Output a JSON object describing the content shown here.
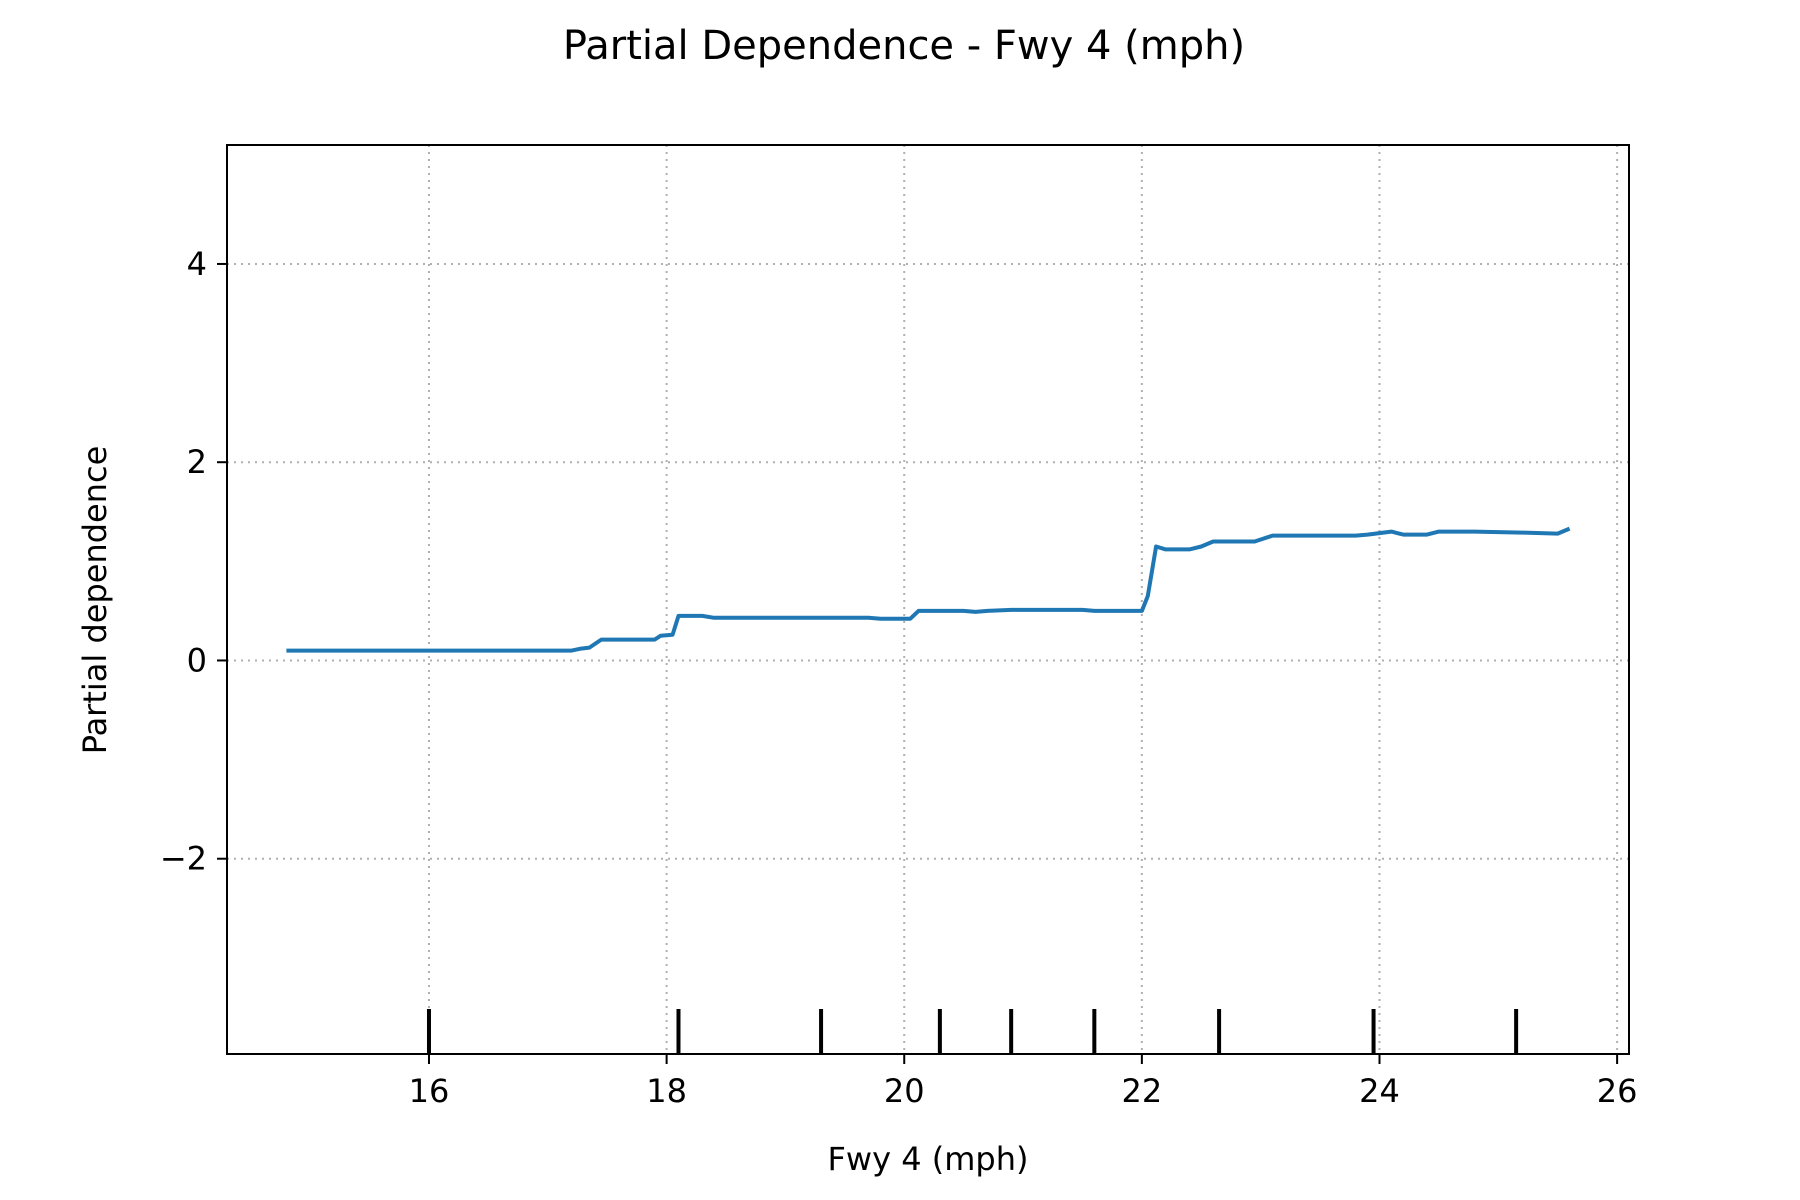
{
  "chart_data": {
    "type": "line",
    "title": "Partial Dependence - Fwy 4 (mph)",
    "xlabel": "Fwy 4 (mph)",
    "ylabel": "Partial dependence",
    "xlim": [
      14.3,
      26.1
    ],
    "ylim": [
      -3.97,
      5.2
    ],
    "xticks": [
      16,
      18,
      20,
      22,
      24,
      26
    ],
    "xtick_labels": [
      "16",
      "18",
      "20",
      "22",
      "24",
      "26"
    ],
    "yticks": [
      -2,
      0,
      2,
      4
    ],
    "ytick_labels": [
      "−2",
      "0",
      "2",
      "4"
    ],
    "grid": true,
    "line_color": "#1f77b4",
    "rug": [
      16.0,
      18.1,
      19.3,
      20.3,
      20.9,
      21.6,
      22.65,
      23.95,
      25.15
    ],
    "series": [
      {
        "x": [
          14.8,
          15.6,
          16.5,
          17.2,
          17.28,
          17.35,
          17.45,
          17.6,
          17.9,
          17.95,
          18.05,
          18.1,
          18.3,
          18.4,
          18.7,
          19.5,
          19.7,
          19.8,
          20.05,
          20.12,
          20.5,
          20.6,
          20.7,
          20.9,
          21.5,
          21.6,
          22.0,
          22.05,
          22.12,
          22.2,
          22.4,
          22.5,
          22.6,
          22.7,
          22.95,
          23.1,
          23.5,
          23.8,
          23.9,
          24.1,
          24.2,
          24.4,
          24.5,
          24.8,
          25.2,
          25.5,
          25.6
        ],
        "y": [
          0.1,
          0.1,
          0.1,
          0.1,
          0.12,
          0.13,
          0.21,
          0.21,
          0.21,
          0.25,
          0.26,
          0.45,
          0.45,
          0.43,
          0.43,
          0.43,
          0.43,
          0.42,
          0.42,
          0.5,
          0.5,
          0.49,
          0.5,
          0.51,
          0.51,
          0.5,
          0.5,
          0.65,
          1.15,
          1.12,
          1.12,
          1.15,
          1.2,
          1.2,
          1.2,
          1.26,
          1.26,
          1.26,
          1.27,
          1.3,
          1.27,
          1.27,
          1.3,
          1.3,
          1.29,
          1.28,
          1.33
        ]
      }
    ]
  }
}
